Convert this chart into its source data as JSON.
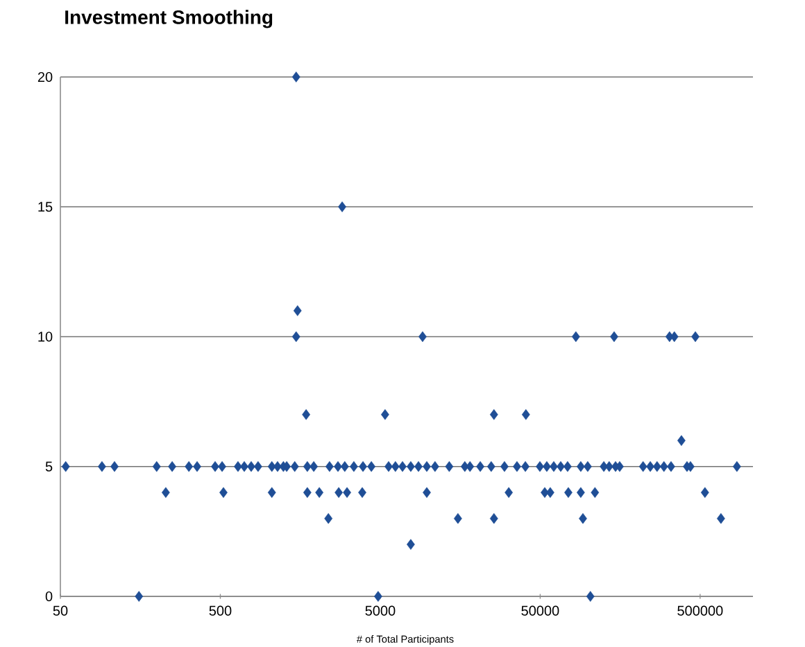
{
  "chart_data": {
    "type": "scatter",
    "title": "Investment Smoothing",
    "xlabel": "# of Total Participants",
    "log": "x",
    "grid": "y",
    "marker": "diamond",
    "xlim": [
      50,
      1070000
    ],
    "xticks": [
      50,
      500,
      5000,
      50000,
      500000
    ],
    "ylim": [
      0,
      20
    ],
    "yticks": [
      0,
      5,
      10,
      15,
      20
    ],
    "series": [
      {
        "color": "#1f4e96",
        "x": [
          54,
          91,
          109,
          200,
          250,
          318,
          358,
          464,
          513,
          645,
          706,
          780,
          861,
          1050,
          1140,
          1240,
          1300,
          1460,
          1750,
          1920,
          2410,
          2720,
          3000,
          3420,
          3900,
          4400,
          5640,
          6220,
          6890,
          7760,
          8670,
          9770,
          11000,
          13500,
          16900,
          18200,
          21100,
          24700,
          29900,
          35800,
          40400,
          49800,
          55000,
          60800,
          67200,
          74200,
          89700,
          99100,
          125000,
          135000,
          148000,
          157000,
          220000,
          244000,
          269000,
          297000,
          329000,
          414000,
          435000,
          849000
        ],
        "values": [
          5,
          5,
          5,
          5,
          5,
          5,
          5,
          5,
          5,
          5,
          5,
          5,
          5,
          5,
          5,
          5,
          5,
          5,
          5,
          5,
          5,
          5,
          5,
          5,
          5,
          5,
          5,
          5,
          5,
          5,
          5,
          5,
          5,
          5,
          5,
          5,
          5,
          5,
          5,
          5,
          5,
          5,
          5,
          5,
          5,
          5,
          5,
          5,
          5,
          5,
          5,
          5,
          5,
          5,
          5,
          5,
          5,
          5,
          5,
          5
        ]
      },
      {
        "color": "#1f4e96",
        "x": [
          228,
          523,
          1050,
          1750,
          2080,
          2750,
          3100,
          3860,
          9770,
          31800,
          53400,
          57800,
          75000,
          89700,
          110000,
          536000
        ],
        "values": [
          4,
          4,
          4,
          4,
          4,
          4,
          4,
          4,
          4,
          4,
          4,
          4,
          4,
          4,
          4,
          4
        ]
      },
      {
        "color": "#1f4e96",
        "x": [
          2370,
          15300,
          25700,
          92500,
          675000,
          7760,
          155,
          4850,
          103000,
          382000
        ],
        "values": [
          3,
          3,
          3,
          3,
          3,
          2,
          0,
          0,
          0,
          6
        ]
      },
      {
        "color": "#1f4e96",
        "x": [
          1720,
          5360,
          25700,
          40700,
          1490,
          9200,
          83600,
          145000,
          322000,
          345000,
          467000,
          1520,
          2890,
          1490
        ],
        "values": [
          7,
          7,
          7,
          7,
          10,
          10,
          10,
          10,
          10,
          10,
          10,
          11,
          15,
          20
        ]
      }
    ]
  }
}
